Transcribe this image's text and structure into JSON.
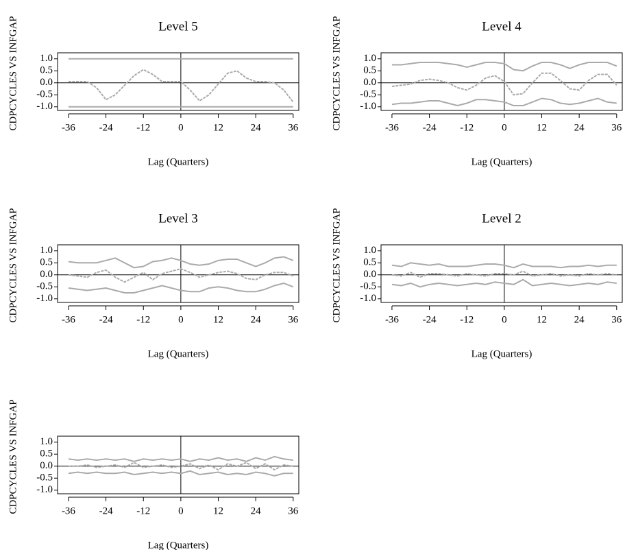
{
  "chart_data": [
    {
      "type": "line",
      "title": "Level 5",
      "x_label": "Lag (Quarters)",
      "y_label": "CDPCYCLES VS INFGAP",
      "x": [
        -36,
        -33,
        -30,
        -27,
        -24,
        -21,
        -18,
        -15,
        -12,
        -9,
        -6,
        -3,
        0,
        3,
        6,
        9,
        12,
        15,
        18,
        21,
        24,
        27,
        30,
        33,
        36
      ],
      "xlim": [
        -39.5,
        37.8
      ],
      "xticks": [
        -36,
        -24,
        -12,
        0,
        12,
        24,
        36
      ],
      "ylim": [
        -1.15,
        1.25
      ],
      "yticks": [
        {
          "value": 1,
          "label": "1.0"
        },
        0.5,
        {
          "value": 0,
          "label": "0.0"
        },
        -0.5,
        {
          "value": -1,
          "label": "-1.0"
        }
      ],
      "series": [
        {
          "color": "#aaaaaa",
          "values": [
            1,
            1,
            1,
            1,
            1,
            1,
            1,
            1,
            1,
            1,
            1,
            1,
            1,
            1,
            1,
            1,
            1,
            1,
            1,
            1,
            1,
            1,
            1,
            1,
            1
          ]
        },
        {
          "color": "#aaaaaa",
          "dashed": true,
          "values": [
            0.05,
            0.05,
            0.05,
            -0.2,
            -0.7,
            -0.5,
            -0.1,
            0.3,
            0.55,
            0.35,
            0.05,
            0.05,
            0.05,
            -0.3,
            -0.75,
            -0.5,
            -0.05,
            0.4,
            0.5,
            0.2,
            0.05,
            0.05,
            0,
            -0.3,
            -0.8
          ]
        },
        {
          "color": "#aaaaaa",
          "values": [
            -1,
            -1,
            -1,
            -1,
            -1,
            -1,
            -1,
            -1,
            -1,
            -1,
            -1,
            -1,
            -1,
            -1,
            -1,
            -1,
            -1,
            -1,
            -1,
            -1,
            -1,
            -1,
            -1,
            -1,
            -1
          ]
        }
      ]
    },
    {
      "type": "line",
      "title": "Level 4",
      "x_label": "Lag (Quarters)",
      "y_label": "CDPCYCLES VS INFGAP",
      "x": [
        -36,
        -33,
        -30,
        -27,
        -24,
        -21,
        -18,
        -15,
        -12,
        -9,
        -6,
        -3,
        0,
        3,
        6,
        9,
        12,
        15,
        18,
        21,
        24,
        27,
        30,
        33,
        36
      ],
      "xlim": [
        -39.5,
        37.8
      ],
      "xticks": [
        -36,
        -24,
        -12,
        0,
        12,
        24,
        36
      ],
      "ylim": [
        -1.15,
        1.25
      ],
      "yticks": [
        {
          "value": 1,
          "label": "1.0"
        },
        0.5,
        {
          "value": 0,
          "label": "0.0"
        },
        -0.5,
        {
          "value": -1,
          "label": "-1.0"
        }
      ],
      "series": [
        {
          "color": "#aaaaaa",
          "values": [
            0.75,
            0.75,
            0.8,
            0.85,
            0.85,
            0.85,
            0.8,
            0.75,
            0.65,
            0.75,
            0.85,
            0.85,
            0.8,
            0.55,
            0.5,
            0.7,
            0.85,
            0.85,
            0.75,
            0.6,
            0.75,
            0.85,
            0.85,
            0.85,
            0.7
          ]
        },
        {
          "color": "#aaaaaa",
          "dashed": true,
          "values": [
            -0.15,
            -0.1,
            -0.05,
            0.1,
            0.15,
            0.1,
            0,
            -0.2,
            -0.3,
            -0.1,
            0.2,
            0.3,
            0.05,
            -0.5,
            -0.45,
            0,
            0.4,
            0.4,
            0.1,
            -0.25,
            -0.3,
            0.1,
            0.35,
            0.35,
            -0.1
          ]
        },
        {
          "color": "#aaaaaa",
          "values": [
            -0.9,
            -0.85,
            -0.85,
            -0.8,
            -0.75,
            -0.75,
            -0.85,
            -0.95,
            -0.85,
            -0.7,
            -0.7,
            -0.75,
            -0.8,
            -0.95,
            -0.95,
            -0.8,
            -0.65,
            -0.7,
            -0.85,
            -0.9,
            -0.85,
            -0.75,
            -0.65,
            -0.8,
            -0.85
          ]
        }
      ]
    },
    {
      "type": "line",
      "title": "Level 3",
      "x_label": "Lag (Quarters)",
      "y_label": "CDPCYCLES VS INFGAP",
      "x": [
        -36,
        -33,
        -30,
        -27,
        -24,
        -21,
        -18,
        -15,
        -12,
        -9,
        -6,
        -3,
        0,
        3,
        6,
        9,
        12,
        15,
        18,
        21,
        24,
        27,
        30,
        33,
        36
      ],
      "xlim": [
        -39.5,
        37.8
      ],
      "xticks": [
        -36,
        -24,
        -12,
        0,
        12,
        24,
        36
      ],
      "ylim": [
        -1.15,
        1.25
      ],
      "yticks": [
        {
          "value": 1,
          "label": "1.0"
        },
        0.5,
        {
          "value": 0,
          "label": "0.0"
        },
        -0.5,
        {
          "value": -1,
          "label": "-1.0"
        }
      ],
      "series": [
        {
          "color": "#aaaaaa",
          "values": [
            0.55,
            0.5,
            0.5,
            0.5,
            0.6,
            0.7,
            0.5,
            0.3,
            0.35,
            0.55,
            0.6,
            0.7,
            0.6,
            0.45,
            0.4,
            0.45,
            0.6,
            0.65,
            0.65,
            0.5,
            0.35,
            0.5,
            0.7,
            0.75,
            0.6
          ]
        },
        {
          "color": "#aaaaaa",
          "dashed": true,
          "values": [
            0,
            -0.05,
            -0.1,
            0.1,
            0.2,
            -0.1,
            -0.3,
            -0.1,
            0.1,
            -0.2,
            0.05,
            0.15,
            0.25,
            0.1,
            -0.1,
            0,
            0.1,
            0.15,
            0.05,
            -0.15,
            -0.2,
            0,
            0.1,
            0.1,
            -0.05
          ]
        },
        {
          "color": "#aaaaaa",
          "values": [
            -0.55,
            -0.6,
            -0.65,
            -0.6,
            -0.55,
            -0.65,
            -0.75,
            -0.75,
            -0.65,
            -0.55,
            -0.45,
            -0.55,
            -0.65,
            -0.7,
            -0.7,
            -0.55,
            -0.5,
            -0.55,
            -0.65,
            -0.7,
            -0.7,
            -0.6,
            -0.45,
            -0.35,
            -0.5
          ]
        }
      ]
    },
    {
      "type": "line",
      "title": "Level 2",
      "x_label": "Lag (Quarters)",
      "y_label": "CDPCYCLES VS INFGAP",
      "x": [
        -36,
        -33,
        -30,
        -27,
        -24,
        -21,
        -18,
        -15,
        -12,
        -9,
        -6,
        -3,
        0,
        3,
        6,
        9,
        12,
        15,
        18,
        21,
        24,
        27,
        30,
        33,
        36
      ],
      "xlim": [
        -39.5,
        37.8
      ],
      "xticks": [
        -36,
        -24,
        -12,
        0,
        12,
        24,
        36
      ],
      "ylim": [
        -1.15,
        1.25
      ],
      "yticks": [
        {
          "value": 1,
          "label": "1.0"
        },
        0.5,
        {
          "value": 0,
          "label": "0.0"
        },
        -0.5,
        {
          "value": -1,
          "label": "-1.0"
        }
      ],
      "series": [
        {
          "color": "#aaaaaa",
          "values": [
            0.4,
            0.35,
            0.5,
            0.45,
            0.4,
            0.45,
            0.35,
            0.35,
            0.35,
            0.4,
            0.45,
            0.45,
            0.4,
            0.3,
            0.45,
            0.35,
            0.35,
            0.35,
            0.3,
            0.35,
            0.35,
            0.4,
            0.35,
            0.4,
            0.4
          ]
        },
        {
          "color": "#aaaaaa",
          "dashed": true,
          "values": [
            0,
            -0.05,
            0.1,
            -0.1,
            0.05,
            0.05,
            0,
            -0.05,
            0.05,
            0,
            -0.05,
            0.05,
            0.05,
            0,
            0.15,
            -0.05,
            0,
            0.05,
            -0.05,
            0,
            -0.05,
            0.05,
            0,
            0.05,
            0
          ]
        },
        {
          "color": "#aaaaaa",
          "values": [
            -0.4,
            -0.45,
            -0.35,
            -0.5,
            -0.4,
            -0.35,
            -0.4,
            -0.45,
            -0.4,
            -0.35,
            -0.4,
            -0.3,
            -0.35,
            -0.4,
            -0.2,
            -0.45,
            -0.4,
            -0.35,
            -0.4,
            -0.45,
            -0.4,
            -0.35,
            -0.4,
            -0.3,
            -0.35
          ]
        }
      ]
    },
    {
      "type": "line",
      "x_label": "Lag (Quarters)",
      "y_label": "CDPCYCLES VS INFGAP",
      "x": [
        -36,
        -33,
        -30,
        -27,
        -24,
        -21,
        -18,
        -15,
        -12,
        -9,
        -6,
        -3,
        0,
        3,
        6,
        9,
        12,
        15,
        18,
        21,
        24,
        27,
        30,
        33,
        36
      ],
      "xlim": [
        -39.5,
        37.8
      ],
      "xticks": [
        -36,
        -24,
        -12,
        0,
        12,
        24,
        36
      ],
      "ylim": [
        -1.15,
        1.25
      ],
      "yticks": [
        {
          "value": 1,
          "label": "1.0"
        },
        0.5,
        {
          "value": 0,
          "label": "0.0"
        },
        -0.5,
        {
          "value": -1,
          "label": "-1.0"
        }
      ],
      "series": [
        {
          "color": "#aaaaaa",
          "values": [
            0.3,
            0.25,
            0.3,
            0.25,
            0.3,
            0.25,
            0.3,
            0.2,
            0.3,
            0.25,
            0.3,
            0.25,
            0.3,
            0.2,
            0.3,
            0.25,
            0.35,
            0.25,
            0.3,
            0.2,
            0.35,
            0.25,
            0.4,
            0.3,
            0.25
          ]
        },
        {
          "color": "#aaaaaa",
          "dashed": true,
          "values": [
            0,
            0,
            0.05,
            -0.05,
            0,
            0.05,
            -0.05,
            0.15,
            -0.05,
            0,
            0.05,
            -0.05,
            0,
            0.1,
            -0.1,
            0.05,
            -0.15,
            0.1,
            0,
            0.15,
            -0.1,
            0.1,
            -0.15,
            0.05,
            0
          ]
        },
        {
          "color": "#aaaaaa",
          "values": [
            -0.3,
            -0.25,
            -0.3,
            -0.25,
            -0.3,
            -0.3,
            -0.25,
            -0.35,
            -0.3,
            -0.25,
            -0.3,
            -0.25,
            -0.3,
            -0.2,
            -0.35,
            -0.3,
            -0.25,
            -0.35,
            -0.3,
            -0.35,
            -0.25,
            -0.3,
            -0.4,
            -0.3,
            -0.3
          ]
        }
      ]
    }
  ]
}
